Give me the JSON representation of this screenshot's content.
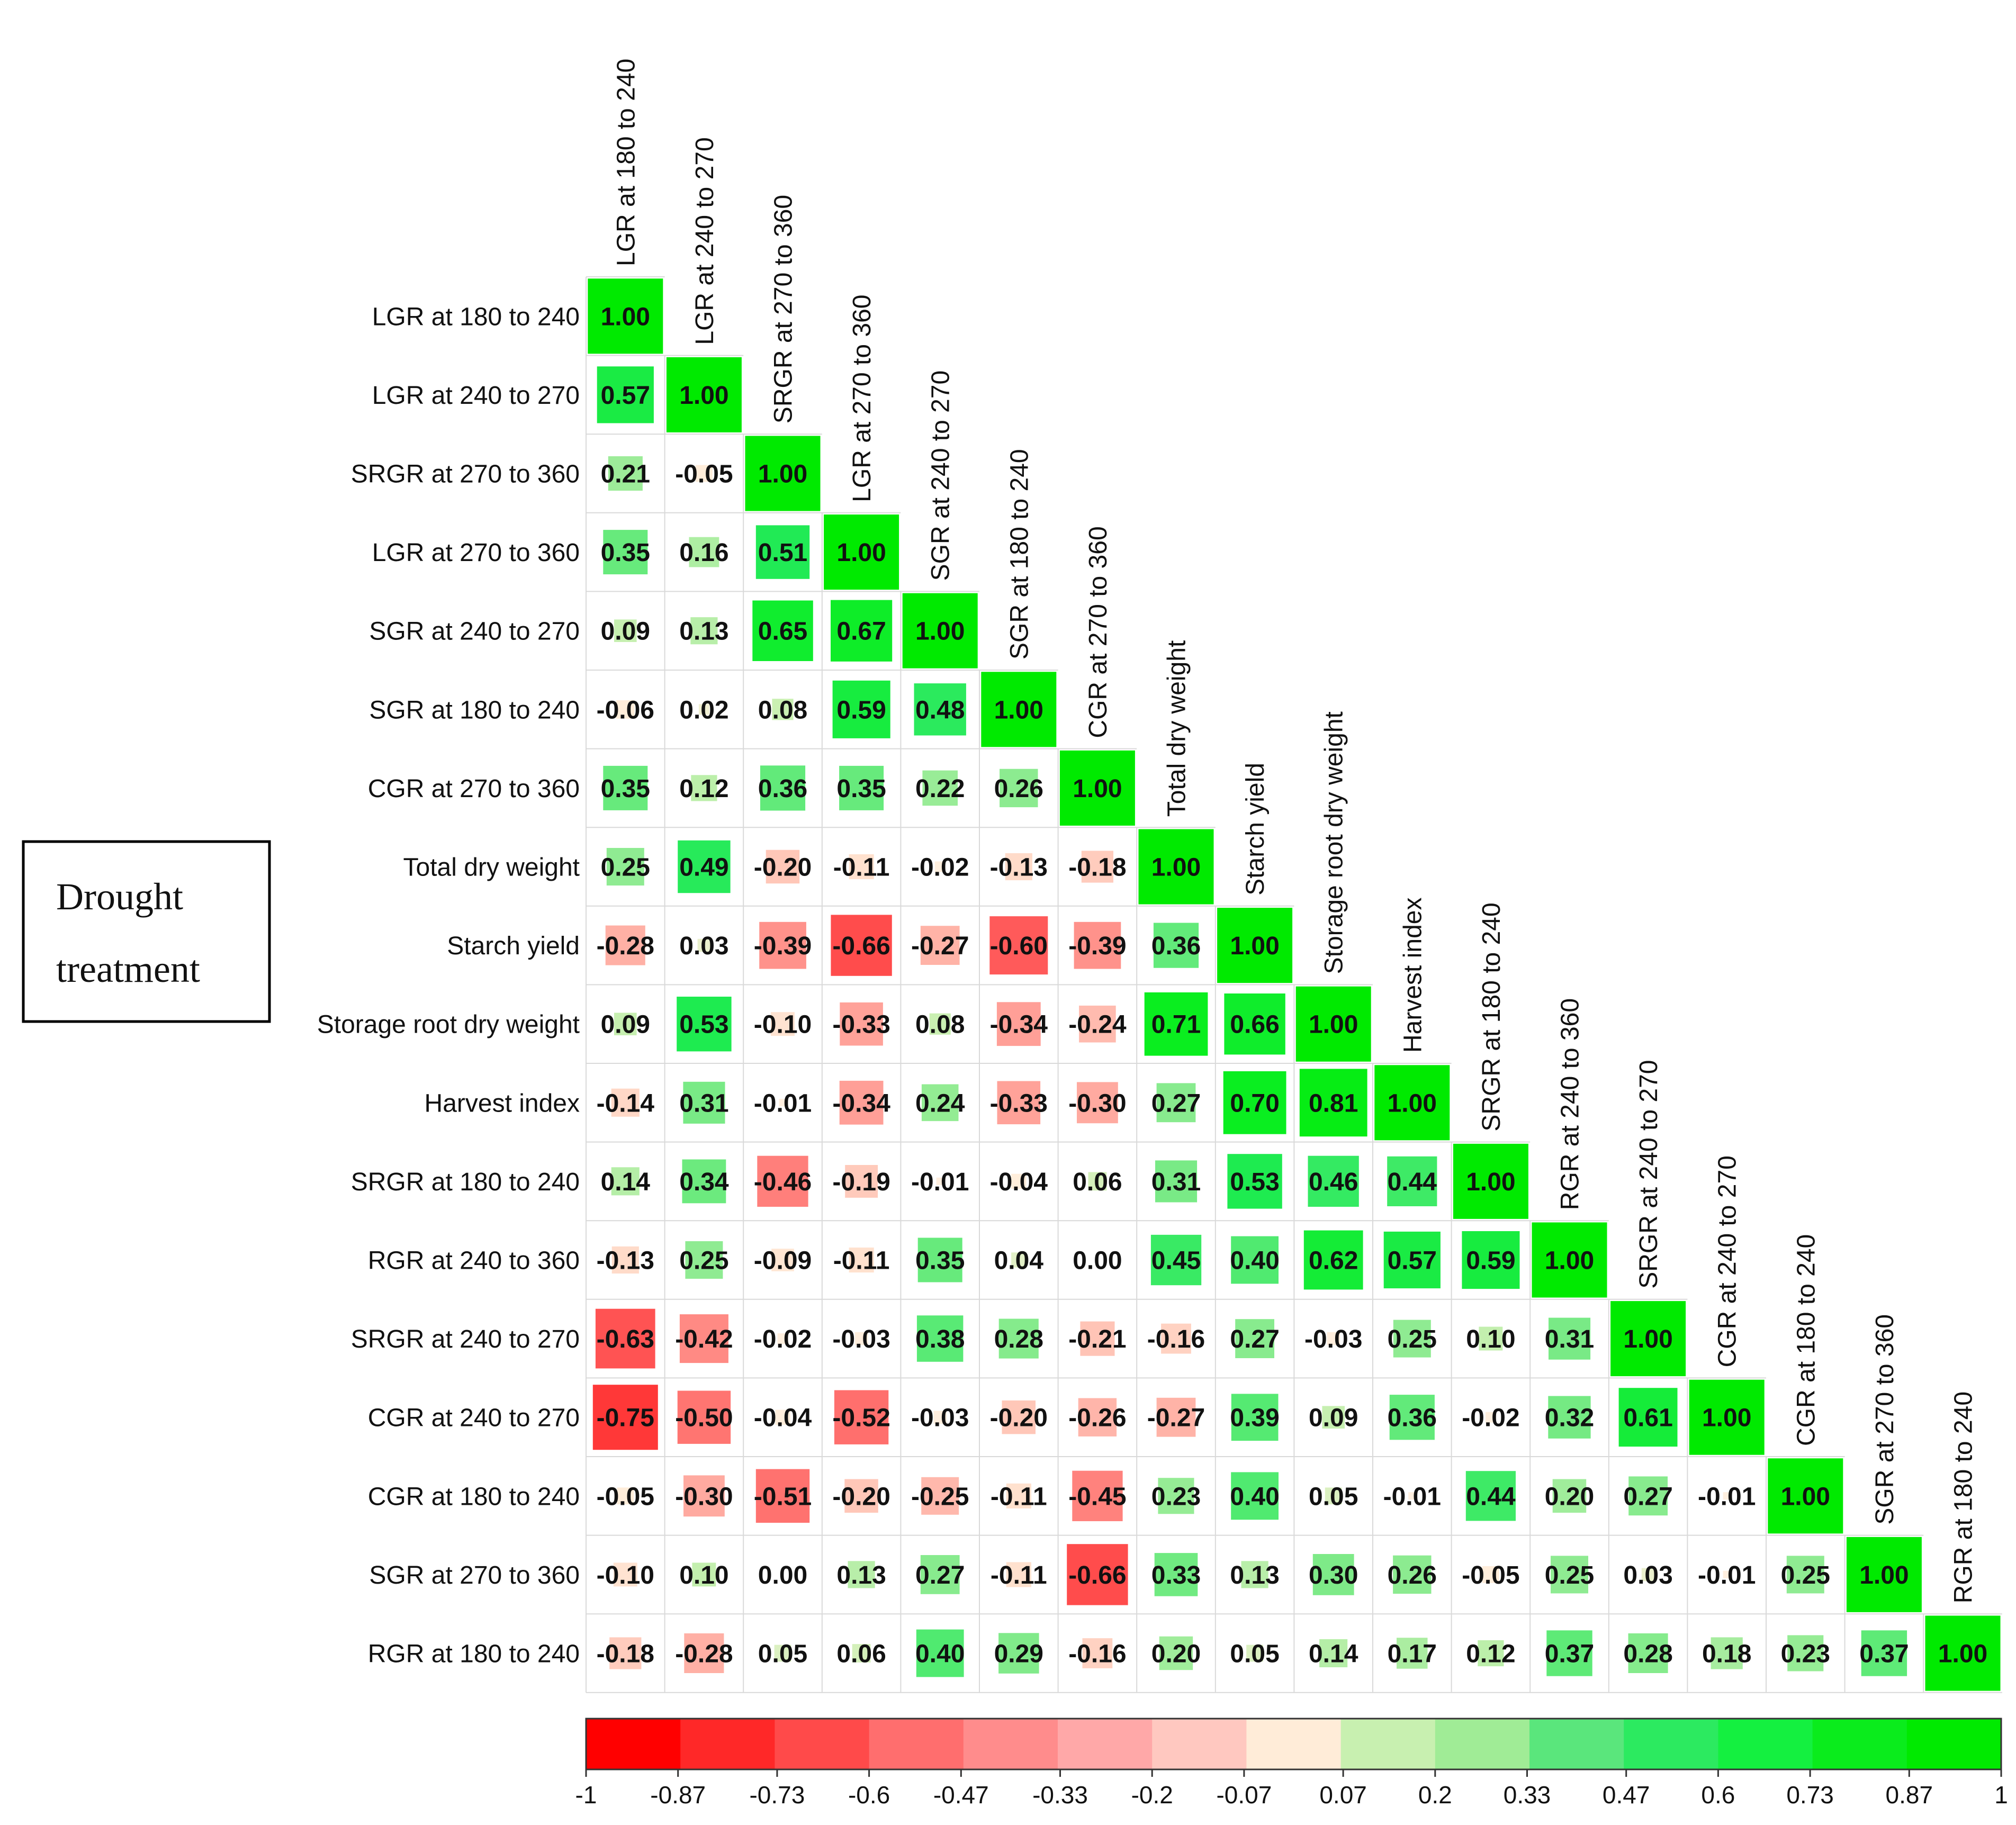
{
  "treatment_box": {
    "line1": "Drought",
    "line2": "treatment"
  },
  "chart_data": {
    "type": "heatmap",
    "shape": "lower-triangular correlation matrix",
    "variables": [
      "LGR at 180 to 240",
      "LGR at 240 to 270",
      "SRGR at 270 to 360",
      "LGR at 270 to 360",
      "SGR at 240 to 270",
      "SGR at 180 to 240",
      "CGR at 270 to 360",
      "Total dry weight",
      "Starch yield",
      "Storage root dry weight",
      "Harvest index",
      "SRGR at 180 to 240",
      "RGR at 240 to 360",
      "SRGR at 240 to 270",
      "CGR at 240 to 270",
      "CGR at 180 to 240",
      "SGR at 270 to 360",
      "RGR at 180 to 240"
    ],
    "matrix": [
      [
        "1.00"
      ],
      [
        "0.57",
        "1.00"
      ],
      [
        "0.21",
        "-0.05",
        "1.00"
      ],
      [
        "0.35",
        "0.16",
        "0.51",
        "1.00"
      ],
      [
        "0.09",
        "0.13",
        "0.65",
        "0.67",
        "1.00"
      ],
      [
        "-0.06",
        "0.02",
        "0.08",
        "0.59",
        "0.48",
        "1.00"
      ],
      [
        "0.35",
        "0.12",
        "0.36",
        "0.35",
        "0.22",
        "0.26",
        "1.00"
      ],
      [
        "0.25",
        "0.49",
        "-0.20",
        "-0.11",
        "-0.02",
        "-0.13",
        "-0.18",
        "1.00"
      ],
      [
        "-0.28",
        "0.03",
        "-0.39",
        "-0.66",
        "-0.27",
        "-0.60",
        "-0.39",
        "0.36",
        "1.00"
      ],
      [
        "0.09",
        "0.53",
        "-0.10",
        "-0.33",
        "0.08",
        "-0.34",
        "-0.24",
        "0.71",
        "0.66",
        "1.00"
      ],
      [
        "-0.14",
        "0.31",
        "-0.01",
        "-0.34",
        "0.24",
        "-0.33",
        "-0.30",
        "0.27",
        "0.70",
        "0.81",
        "1.00"
      ],
      [
        "0.14",
        "0.34",
        "-0.46",
        "-0.19",
        "-0.01",
        "-0.04",
        "0.06",
        "0.31",
        "0.53",
        "0.46",
        "0.44",
        "1.00"
      ],
      [
        "-0.13",
        "0.25",
        "-0.09",
        "-0.11",
        "0.35",
        "0.04",
        "0.00",
        "0.45",
        "0.40",
        "0.62",
        "0.57",
        "0.59",
        "1.00"
      ],
      [
        "-0.63",
        "-0.42",
        "-0.02",
        "-0.03",
        "0.38",
        "0.28",
        "-0.21",
        "-0.16",
        "0.27",
        "-0.03",
        "0.25",
        "0.10",
        "0.31",
        "1.00"
      ],
      [
        "-0.75",
        "-0.50",
        "-0.04",
        "-0.52",
        "-0.03",
        "-0.20",
        "-0.26",
        "-0.27",
        "0.39",
        "0.09",
        "0.36",
        "-0.02",
        "0.32",
        "0.61",
        "1.00"
      ],
      [
        "-0.05",
        "-0.30",
        "-0.51",
        "-0.20",
        "-0.25",
        "-0.11",
        "-0.45",
        "0.23",
        "0.40",
        "0.05",
        "-0.01",
        "0.44",
        "0.20",
        "0.27",
        "-0.01",
        "1.00"
      ],
      [
        "-0.10",
        "0.10",
        "0.00",
        "0.13",
        "0.27",
        "-0.11",
        "-0.66",
        "0.33",
        "0.13",
        "0.30",
        "0.26",
        "-0.05",
        "0.25",
        "0.03",
        "-0.01",
        "0.25",
        "1.00"
      ],
      [
        "-0.18",
        "-0.28",
        "0.05",
        "0.06",
        "0.40",
        "0.29",
        "-0.16",
        "0.20",
        "0.05",
        "0.14",
        "0.17",
        "0.12",
        "0.37",
        "0.28",
        "0.18",
        "0.23",
        "0.37",
        "1.00"
      ]
    ],
    "color_scale": {
      "range": [
        -1,
        1
      ],
      "ticks": [
        "-1",
        "-0.87",
        "-0.73",
        "-0.6",
        "-0.47",
        "-0.33",
        "-0.2",
        "-0.07",
        "0.07",
        "0.2",
        "0.33",
        "0.47",
        "0.6",
        "0.73",
        "0.87",
        "1"
      ],
      "bin_colors": [
        "#ff0000",
        "#ff2828",
        "#ff4a4a",
        "#ff6e6e",
        "#ff8c8c",
        "#ffa8a8",
        "#ffc8c0",
        "#ffecd8",
        "#c8f0b0",
        "#a0ec96",
        "#5ae67c",
        "#2cea60",
        "#14f040",
        "#0aec1c",
        "#00ea00"
      ]
    },
    "legend_placement": "bottom"
  }
}
